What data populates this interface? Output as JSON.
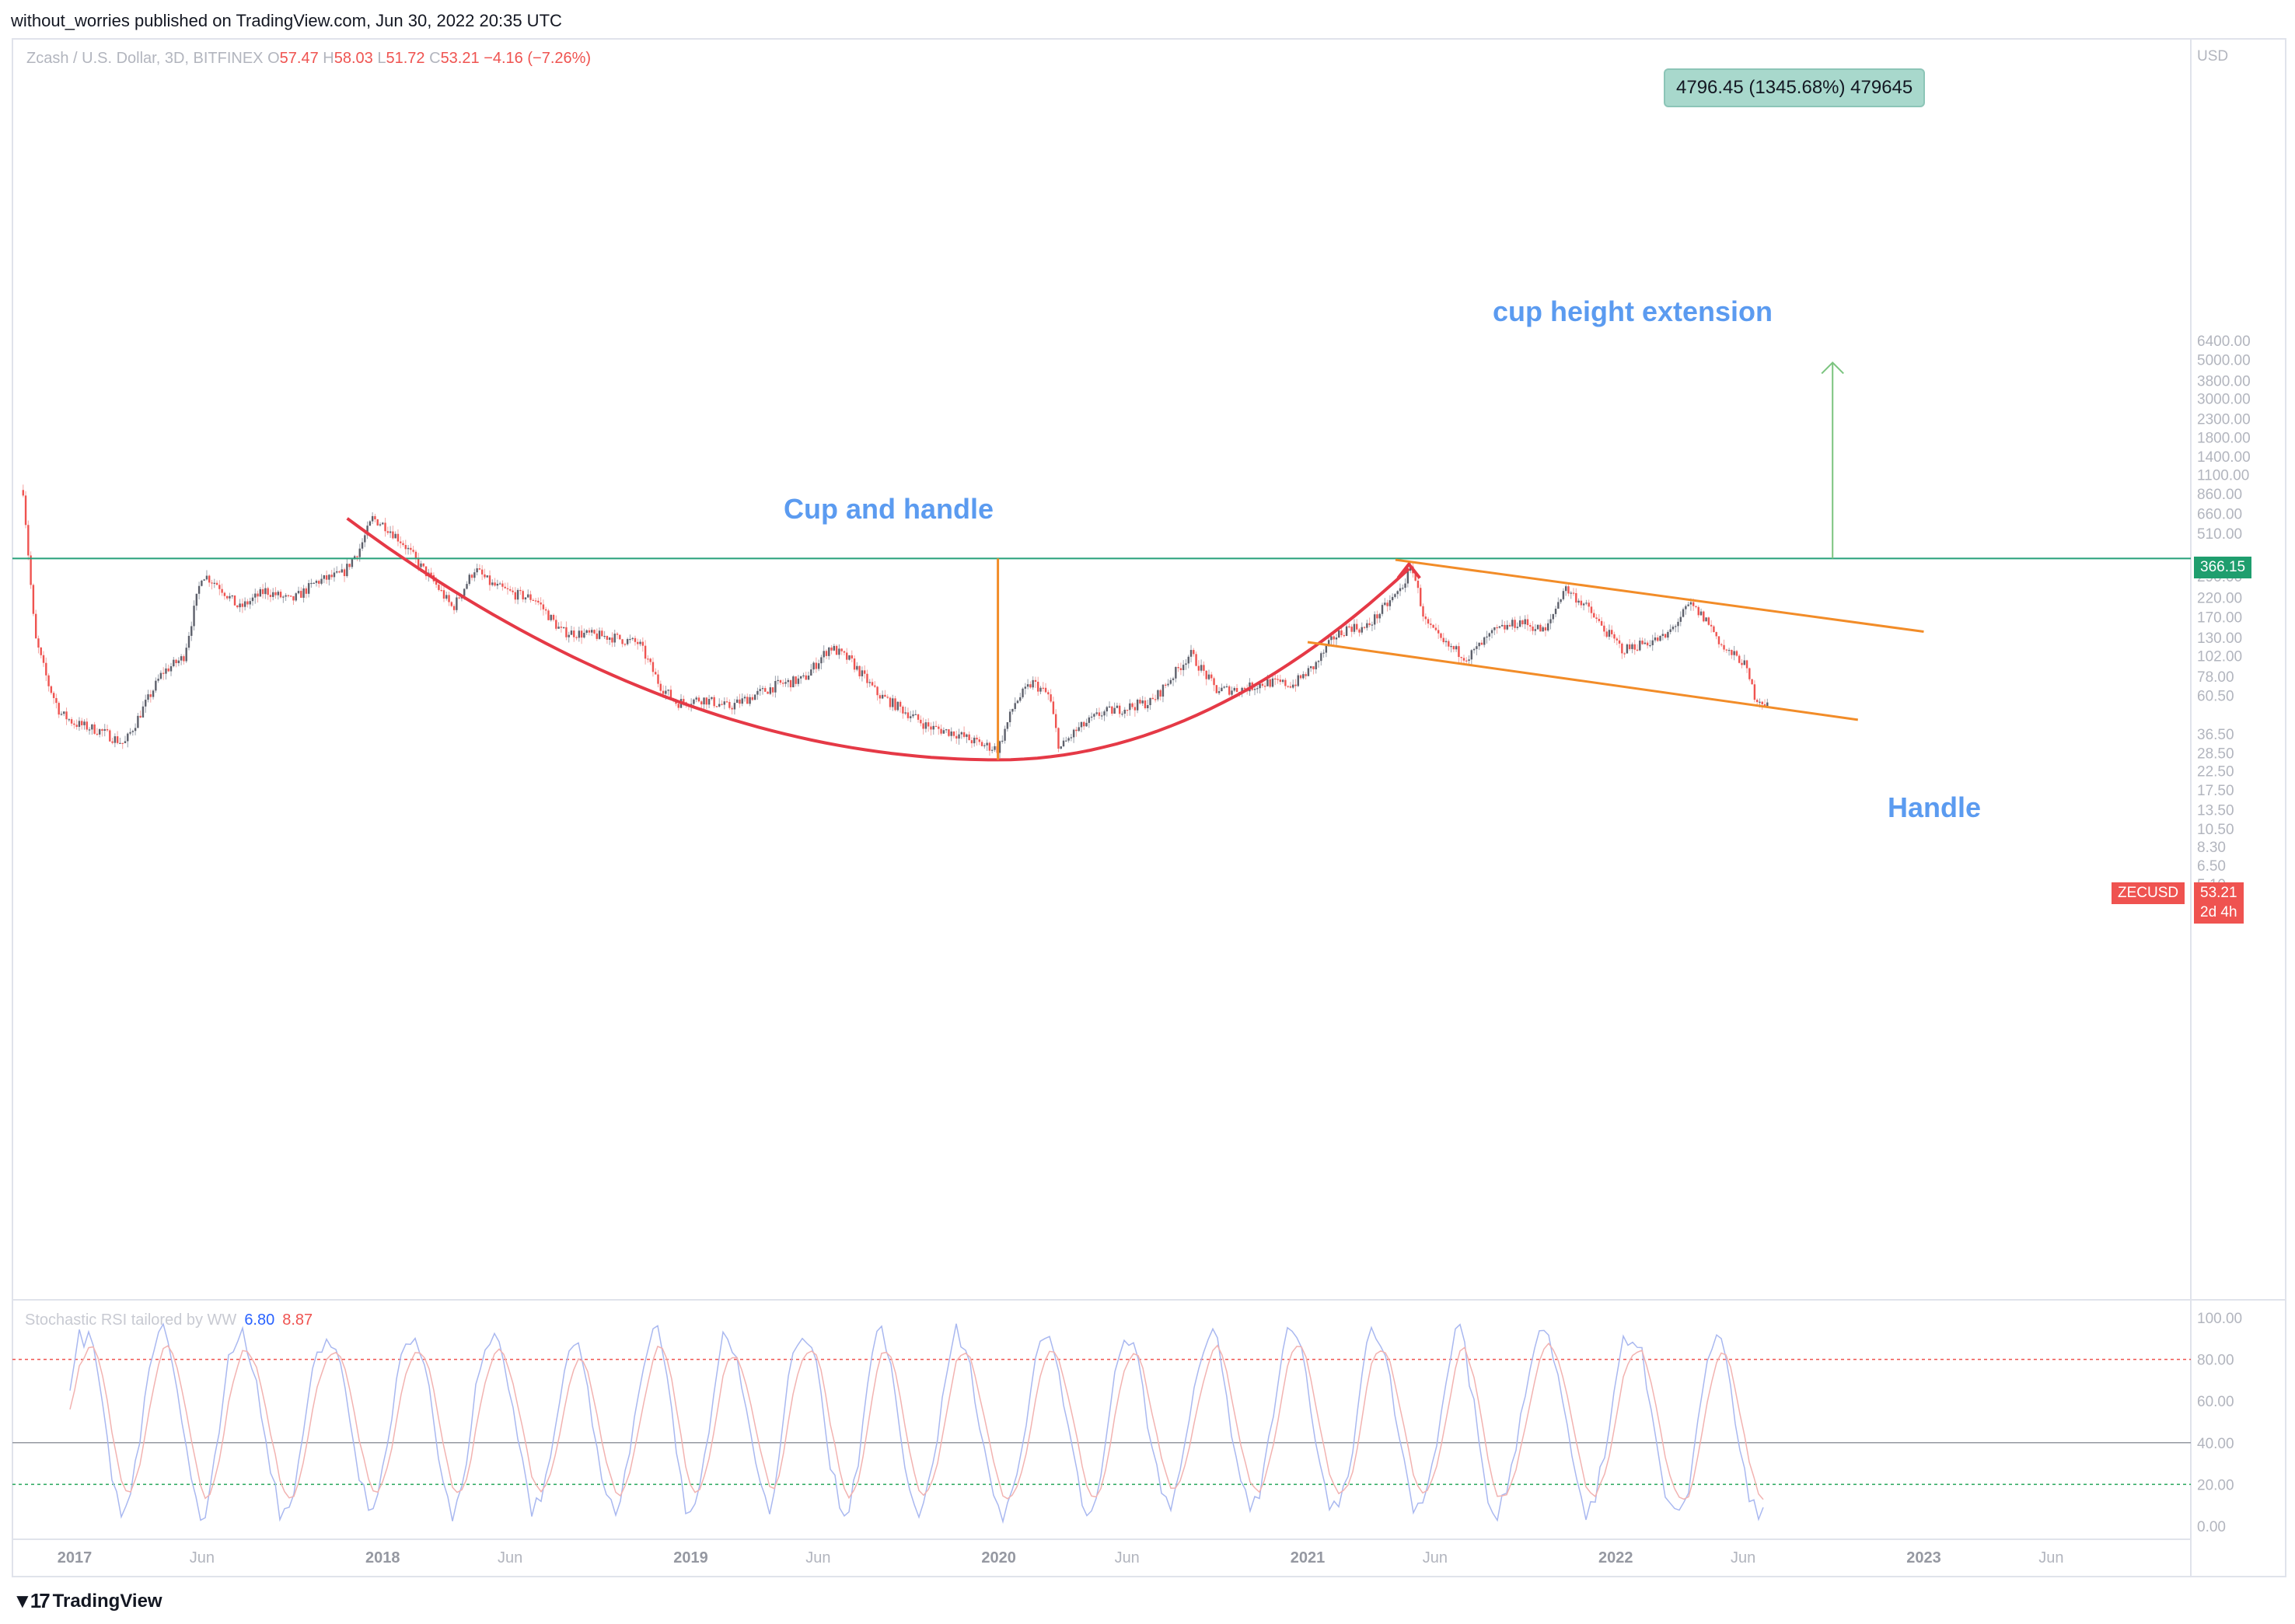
{
  "header": {
    "publisher": "without_worries published on TradingView.com, Jun 30, 2022 20:35 UTC"
  },
  "symbol": {
    "name": "Zcash / U.S. Dollar, 3D, BITFINEX",
    "open_label": "O",
    "open": "57.47",
    "high_label": "H",
    "high": "58.03",
    "low_label": "L",
    "low": "51.72",
    "close_label": "C",
    "close": "53.21",
    "change": "−4.16 (−7.26%)"
  },
  "chart_data": {
    "type": "candlestick",
    "symbol": "ZECUSD",
    "exchange": "BITFINEX",
    "timeframe": "3D",
    "log_scale": true,
    "currency": "USD",
    "y_ticks": [
      "6400.00",
      "5000.00",
      "3800.00",
      "3000.00",
      "2300.00",
      "1800.00",
      "1400.00",
      "1100.00",
      "860.00",
      "660.00",
      "510.00",
      "290.00",
      "220.00",
      "170.00",
      "130.00",
      "102.00",
      "78.00",
      "60.50",
      "36.50",
      "28.50",
      "22.50",
      "17.50",
      "13.50",
      "10.50",
      "8.30",
      "6.50",
      "5.10"
    ],
    "x_ticks": [
      "2017",
      "Jun",
      "2018",
      "Jun",
      "2019",
      "Jun",
      "2020",
      "Jun",
      "2021",
      "Jun",
      "2022",
      "Jun",
      "2023",
      "Jun"
    ],
    "price_series": [
      [
        "2016-11-01",
        900
      ],
      [
        "2016-11-15",
        130
      ],
      [
        "2016-12-01",
        70
      ],
      [
        "2016-12-15",
        48
      ],
      [
        "2017-01-01",
        42
      ],
      [
        "2017-02-01",
        38
      ],
      [
        "2017-03-01",
        32
      ],
      [
        "2017-03-20",
        48
      ],
      [
        "2017-04-15",
        82
      ],
      [
        "2017-05-10",
        100
      ],
      [
        "2017-06-01",
        300
      ],
      [
        "2017-06-20",
        260
      ],
      [
        "2017-07-15",
        190
      ],
      [
        "2017-08-15",
        240
      ],
      [
        "2017-09-15",
        210
      ],
      [
        "2017-10-15",
        270
      ],
      [
        "2017-11-15",
        300
      ],
      [
        "2017-12-05",
        420
      ],
      [
        "2017-12-20",
        620
      ],
      [
        "2018-01-05",
        560
      ],
      [
        "2018-01-25",
        450
      ],
      [
        "2018-02-15",
        330
      ],
      [
        "2018-03-05",
        260
      ],
      [
        "2018-03-25",
        190
      ],
      [
        "2018-04-20",
        320
      ],
      [
        "2018-05-10",
        260
      ],
      [
        "2018-06-05",
        230
      ],
      [
        "2018-07-01",
        215
      ],
      [
        "2018-08-01",
        140
      ],
      [
        "2018-09-01",
        135
      ],
      [
        "2018-10-01",
        130
      ],
      [
        "2018-11-01",
        120
      ],
      [
        "2018-11-25",
        70
      ],
      [
        "2018-12-15",
        55
      ],
      [
        "2019-01-15",
        58
      ],
      [
        "2019-02-15",
        52
      ],
      [
        "2019-03-15",
        60
      ],
      [
        "2019-04-15",
        70
      ],
      [
        "2019-05-15",
        75
      ],
      [
        "2019-06-15",
        115
      ],
      [
        "2019-07-10",
        95
      ],
      [
        "2019-08-10",
        62
      ],
      [
        "2019-09-10",
        50
      ],
      [
        "2019-10-10",
        40
      ],
      [
        "2019-11-10",
        37
      ],
      [
        "2019-12-10",
        32
      ],
      [
        "2019-12-31",
        30
      ],
      [
        "2020-01-20",
        55
      ],
      [
        "2020-02-10",
        72
      ],
      [
        "2020-03-01",
        60
      ],
      [
        "2020-03-13",
        30
      ],
      [
        "2020-04-01",
        38
      ],
      [
        "2020-05-01",
        48
      ],
      [
        "2020-06-01",
        52
      ],
      [
        "2020-07-01",
        56
      ],
      [
        "2020-08-15",
        105
      ],
      [
        "2020-09-15",
        65
      ],
      [
        "2020-10-15",
        66
      ],
      [
        "2020-11-15",
        72
      ],
      [
        "2020-12-15",
        70
      ],
      [
        "2021-01-10",
        90
      ],
      [
        "2021-02-01",
        130
      ],
      [
        "2021-02-20",
        150
      ],
      [
        "2021-03-10",
        145
      ],
      [
        "2021-04-01",
        190
      ],
      [
        "2021-04-20",
        240
      ],
      [
        "2021-05-05",
        330
      ],
      [
        "2021-05-20",
        160
      ],
      [
        "2021-06-10",
        120
      ],
      [
        "2021-07-10",
        100
      ],
      [
        "2021-08-10",
        140
      ],
      [
        "2021-09-10",
        160
      ],
      [
        "2021-10-10",
        140
      ],
      [
        "2021-11-01",
        250
      ],
      [
        "2021-11-25",
        200
      ],
      [
        "2021-12-15",
        150
      ],
      [
        "2022-01-10",
        110
      ],
      [
        "2022-02-01",
        120
      ],
      [
        "2022-03-01",
        130
      ],
      [
        "2022-03-30",
        200
      ],
      [
        "2022-04-20",
        160
      ],
      [
        "2022-05-10",
        110
      ],
      [
        "2022-06-01",
        95
      ],
      [
        "2022-06-15",
        60
      ],
      [
        "2022-06-30",
        53.21
      ]
    ],
    "current_price": "53.21",
    "countdown": "2d 4h",
    "resistance_level": "366.15",
    "annotations": {
      "cup": "Cup and handle",
      "handle": "Handle",
      "extension": "cup height extension",
      "target": "4796.45 (1345.68%) 479645"
    }
  },
  "oscillator": {
    "name": "Stochastic RSI tailored by WW",
    "k": "6.80",
    "d": "8.87",
    "y_ticks": [
      "100.00",
      "80.00",
      "60.00",
      "40.00",
      "20.00",
      "0.00"
    ]
  },
  "footer": {
    "logo": "TradingView"
  },
  "colors": {
    "up": "#26a69a",
    "down": "#ef5350",
    "cup": "#e53946",
    "handle": "#f28c28",
    "resistance": "#26a07a",
    "target": "#7bc47f",
    "annotation": "#5b9bf0"
  }
}
